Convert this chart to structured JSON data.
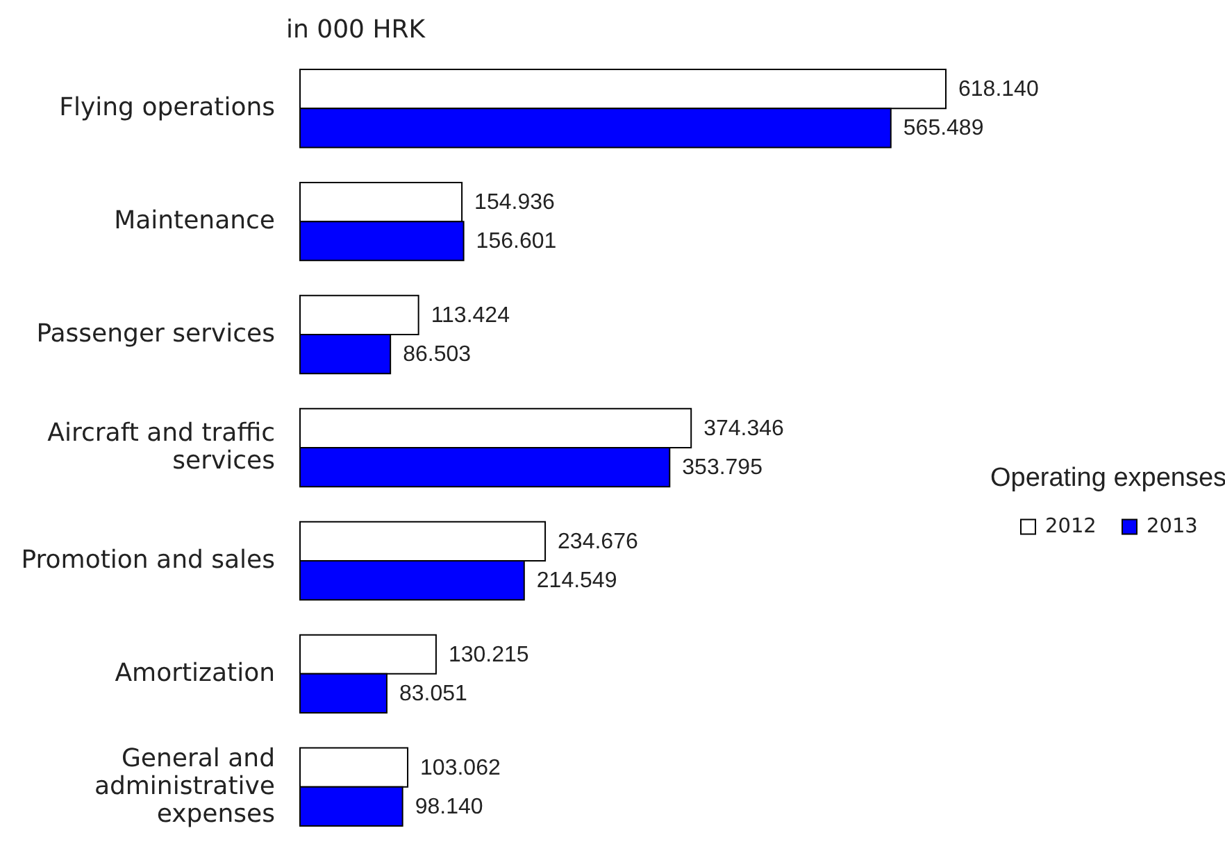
{
  "chart_data": {
    "type": "bar",
    "orientation": "horizontal",
    "legend_title": "Operating expenses",
    "legend": "right",
    "annotations": [
      "in 000 HRK"
    ],
    "categories": [
      "Flying operations",
      "Maintenance",
      "Passenger services",
      "Aircraft and traffic services",
      "Promotion and sales",
      "Amortization",
      "General and administrative expenses"
    ],
    "series": [
      {
        "name": "2012",
        "color": "#ffffff",
        "values": [
          618140,
          154936,
          113424,
          374346,
          234676,
          130215,
          103062
        ],
        "value_labels": [
          "618.140",
          "154.936",
          "113.424",
          "374.346",
          "234.676",
          "130.215",
          "103.062"
        ]
      },
      {
        "name": "2013",
        "color": "#0000ff",
        "values": [
          565489,
          156601,
          86503,
          353795,
          214549,
          83051,
          98140
        ],
        "value_labels": [
          "565.489",
          "156.601",
          "86.503",
          "353.795",
          "214.549",
          "83.051",
          "98.140"
        ]
      }
    ]
  }
}
